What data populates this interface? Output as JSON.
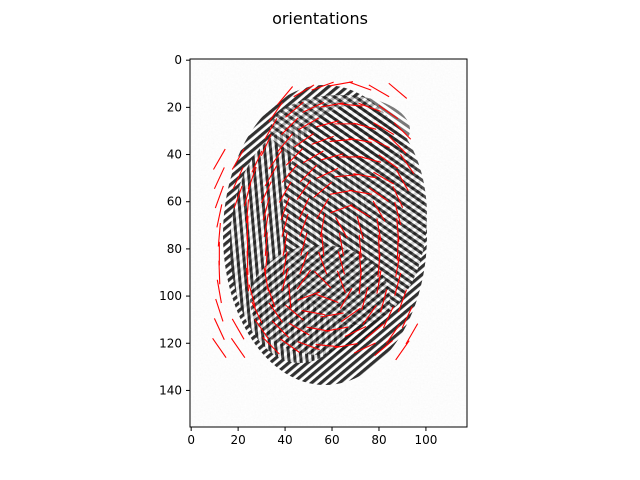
{
  "chart_data": {
    "type": "image",
    "title": "orientations",
    "xlabel": "",
    "ylabel": "",
    "xlim": [
      -0.5,
      117.5
    ],
    "ylim": [
      155.5,
      -0.5
    ],
    "x_ticks": [
      0,
      20,
      40,
      60,
      80,
      100
    ],
    "y_ticks": [
      0,
      20,
      40,
      60,
      80,
      100,
      120,
      140
    ],
    "image": "grayscale fingerprint",
    "image_colormap": "gray",
    "grid": false,
    "orientation_line_color": "#ff0000",
    "orientation_line_length": 10,
    "orientation_field": [
      {
        "x": 40,
        "y": 15,
        "angle": 50
      },
      {
        "x": 48,
        "y": 13,
        "angle": 30
      },
      {
        "x": 56,
        "y": 11,
        "angle": 20
      },
      {
        "x": 64,
        "y": 10,
        "angle": 10
      },
      {
        "x": 72,
        "y": 11,
        "angle": -20
      },
      {
        "x": 80,
        "y": 13,
        "angle": -30
      },
      {
        "x": 88,
        "y": 13,
        "angle": -40
      },
      {
        "x": 36,
        "y": 22,
        "angle": 55
      },
      {
        "x": 44,
        "y": 21,
        "angle": 40
      },
      {
        "x": 52,
        "y": 20,
        "angle": 25
      },
      {
        "x": 60,
        "y": 19,
        "angle": 10
      },
      {
        "x": 68,
        "y": 19,
        "angle": -5
      },
      {
        "x": 76,
        "y": 20,
        "angle": -20
      },
      {
        "x": 84,
        "y": 22,
        "angle": -35
      },
      {
        "x": 34,
        "y": 29,
        "angle": 60
      },
      {
        "x": 42,
        "y": 28,
        "angle": 45
      },
      {
        "x": 50,
        "y": 27,
        "angle": 30
      },
      {
        "x": 58,
        "y": 27,
        "angle": 15
      },
      {
        "x": 66,
        "y": 27,
        "angle": 0
      },
      {
        "x": 74,
        "y": 28,
        "angle": -15
      },
      {
        "x": 82,
        "y": 29,
        "angle": -30
      },
      {
        "x": 90,
        "y": 30,
        "angle": -45
      },
      {
        "x": 32,
        "y": 36,
        "angle": 65
      },
      {
        "x": 40,
        "y": 35,
        "angle": 50
      },
      {
        "x": 48,
        "y": 34,
        "angle": 35
      },
      {
        "x": 56,
        "y": 34,
        "angle": 20
      },
      {
        "x": 64,
        "y": 34,
        "angle": 5
      },
      {
        "x": 72,
        "y": 34,
        "angle": -10
      },
      {
        "x": 80,
        "y": 35,
        "angle": -25
      },
      {
        "x": 88,
        "y": 36,
        "angle": -45
      },
      {
        "x": 28,
        "y": 43,
        "angle": 65
      },
      {
        "x": 36,
        "y": 42,
        "angle": 55
      },
      {
        "x": 44,
        "y": 41,
        "angle": 45
      },
      {
        "x": 52,
        "y": 41,
        "angle": 30
      },
      {
        "x": 60,
        "y": 41,
        "angle": 15
      },
      {
        "x": 68,
        "y": 41,
        "angle": 0
      },
      {
        "x": 76,
        "y": 42,
        "angle": -15
      },
      {
        "x": 84,
        "y": 43,
        "angle": -35
      },
      {
        "x": 92,
        "y": 44,
        "angle": -55
      },
      {
        "x": 26,
        "y": 50,
        "angle": 70
      },
      {
        "x": 34,
        "y": 49,
        "angle": 60
      },
      {
        "x": 42,
        "y": 48,
        "angle": 50
      },
      {
        "x": 50,
        "y": 48,
        "angle": 45
      },
      {
        "x": 58,
        "y": 48,
        "angle": 25
      },
      {
        "x": 66,
        "y": 49,
        "angle": 5
      },
      {
        "x": 74,
        "y": 49,
        "angle": -10
      },
      {
        "x": 82,
        "y": 50,
        "angle": -30
      },
      {
        "x": 90,
        "y": 51,
        "angle": -60
      },
      {
        "x": 24,
        "y": 57,
        "angle": 75
      },
      {
        "x": 32,
        "y": 56,
        "angle": 65
      },
      {
        "x": 40,
        "y": 56,
        "angle": 60
      },
      {
        "x": 48,
        "y": 55,
        "angle": 55
      },
      {
        "x": 56,
        "y": 55,
        "angle": 40
      },
      {
        "x": 64,
        "y": 56,
        "angle": 10
      },
      {
        "x": 72,
        "y": 56,
        "angle": -10
      },
      {
        "x": 80,
        "y": 57,
        "angle": -35
      },
      {
        "x": 88,
        "y": 58,
        "angle": -65
      },
      {
        "x": 24,
        "y": 64,
        "angle": 85
      },
      {
        "x": 32,
        "y": 63,
        "angle": 75
      },
      {
        "x": 40,
        "y": 63,
        "angle": 70
      },
      {
        "x": 48,
        "y": 63,
        "angle": 65
      },
      {
        "x": 56,
        "y": 63,
        "angle": 60
      },
      {
        "x": 64,
        "y": 63,
        "angle": 20
      },
      {
        "x": 72,
        "y": 64,
        "angle": -30
      },
      {
        "x": 80,
        "y": 64,
        "angle": -60
      },
      {
        "x": 88,
        "y": 65,
        "angle": -75
      },
      {
        "x": 24,
        "y": 71,
        "angle": 88
      },
      {
        "x": 32,
        "y": 70,
        "angle": 80
      },
      {
        "x": 40,
        "y": 70,
        "angle": 75
      },
      {
        "x": 48,
        "y": 70,
        "angle": 70
      },
      {
        "x": 56,
        "y": 70,
        "angle": 80
      },
      {
        "x": 64,
        "y": 71,
        "angle": -60
      },
      {
        "x": 72,
        "y": 71,
        "angle": -75
      },
      {
        "x": 80,
        "y": 72,
        "angle": -80
      },
      {
        "x": 88,
        "y": 72,
        "angle": -85
      },
      {
        "x": 24,
        "y": 78,
        "angle": 90
      },
      {
        "x": 32,
        "y": 78,
        "angle": 85
      },
      {
        "x": 40,
        "y": 78,
        "angle": 80
      },
      {
        "x": 48,
        "y": 78,
        "angle": 75
      },
      {
        "x": 56,
        "y": 78,
        "angle": -85
      },
      {
        "x": 64,
        "y": 78,
        "angle": -80
      },
      {
        "x": 72,
        "y": 79,
        "angle": -85
      },
      {
        "x": 80,
        "y": 79,
        "angle": -88
      },
      {
        "x": 88,
        "y": 80,
        "angle": 88
      },
      {
        "x": 24,
        "y": 86,
        "angle": -88
      },
      {
        "x": 32,
        "y": 86,
        "angle": 85
      },
      {
        "x": 40,
        "y": 86,
        "angle": 80
      },
      {
        "x": 48,
        "y": 86,
        "angle": 70
      },
      {
        "x": 56,
        "y": 86,
        "angle": -70
      },
      {
        "x": 64,
        "y": 86,
        "angle": -75
      },
      {
        "x": 72,
        "y": 86,
        "angle": -85
      },
      {
        "x": 80,
        "y": 87,
        "angle": 85
      },
      {
        "x": 88,
        "y": 87,
        "angle": 80
      },
      {
        "x": 24,
        "y": 93,
        "angle": -85
      },
      {
        "x": 32,
        "y": 93,
        "angle": -80
      },
      {
        "x": 40,
        "y": 93,
        "angle": 75
      },
      {
        "x": 48,
        "y": 93,
        "angle": 55
      },
      {
        "x": 56,
        "y": 93,
        "angle": -45
      },
      {
        "x": 64,
        "y": 94,
        "angle": -70
      },
      {
        "x": 72,
        "y": 94,
        "angle": 85
      },
      {
        "x": 80,
        "y": 94,
        "angle": 80
      },
      {
        "x": 88,
        "y": 95,
        "angle": 75
      },
      {
        "x": 26,
        "y": 100,
        "angle": -75
      },
      {
        "x": 34,
        "y": 100,
        "angle": -70
      },
      {
        "x": 42,
        "y": 100,
        "angle": -85
      },
      {
        "x": 50,
        "y": 100,
        "angle": 20
      },
      {
        "x": 58,
        "y": 101,
        "angle": -20
      },
      {
        "x": 66,
        "y": 101,
        "angle": 60
      },
      {
        "x": 74,
        "y": 101,
        "angle": 75
      },
      {
        "x": 82,
        "y": 102,
        "angle": 75
      },
      {
        "x": 90,
        "y": 102,
        "angle": 70
      },
      {
        "x": 28,
        "y": 107,
        "angle": -65
      },
      {
        "x": 36,
        "y": 107,
        "angle": -55
      },
      {
        "x": 44,
        "y": 107,
        "angle": -40
      },
      {
        "x": 52,
        "y": 107,
        "angle": -10
      },
      {
        "x": 60,
        "y": 108,
        "angle": 10
      },
      {
        "x": 68,
        "y": 108,
        "angle": 35
      },
      {
        "x": 76,
        "y": 108,
        "angle": 55
      },
      {
        "x": 84,
        "y": 109,
        "angle": 65
      },
      {
        "x": 92,
        "y": 109,
        "angle": 65
      },
      {
        "x": 30,
        "y": 114,
        "angle": -55
      },
      {
        "x": 38,
        "y": 114,
        "angle": -45
      },
      {
        "x": 46,
        "y": 114,
        "angle": -30
      },
      {
        "x": 54,
        "y": 114,
        "angle": -10
      },
      {
        "x": 62,
        "y": 114,
        "angle": 10
      },
      {
        "x": 70,
        "y": 115,
        "angle": 25
      },
      {
        "x": 78,
        "y": 115,
        "angle": 40
      },
      {
        "x": 86,
        "y": 116,
        "angle": 55
      },
      {
        "x": 94,
        "y": 116,
        "angle": 60
      },
      {
        "x": 34,
        "y": 121,
        "angle": -45
      },
      {
        "x": 42,
        "y": 121,
        "angle": -35
      },
      {
        "x": 50,
        "y": 121,
        "angle": -20
      },
      {
        "x": 58,
        "y": 121,
        "angle": -5
      },
      {
        "x": 66,
        "y": 121,
        "angle": 10
      },
      {
        "x": 74,
        "y": 122,
        "angle": 25
      },
      {
        "x": 82,
        "y": 122,
        "angle": 40
      },
      {
        "x": 90,
        "y": 123,
        "angle": 55
      },
      {
        "x": 12,
        "y": 42,
        "angle": 60
      },
      {
        "x": 20,
        "y": 42,
        "angle": 60
      },
      {
        "x": 12,
        "y": 50,
        "angle": 65
      },
      {
        "x": 20,
        "y": 50,
        "angle": 65
      },
      {
        "x": 12,
        "y": 58,
        "angle": 70
      },
      {
        "x": 20,
        "y": 58,
        "angle": 70
      },
      {
        "x": 12,
        "y": 66,
        "angle": 78
      },
      {
        "x": 12,
        "y": 74,
        "angle": 85
      },
      {
        "x": 12,
        "y": 82,
        "angle": 90
      },
      {
        "x": 12,
        "y": 90,
        "angle": -88
      },
      {
        "x": 12,
        "y": 98,
        "angle": -80
      },
      {
        "x": 12,
        "y": 106,
        "angle": -72
      },
      {
        "x": 12,
        "y": 114,
        "angle": -65
      },
      {
        "x": 20,
        "y": 114,
        "angle": -60
      },
      {
        "x": 12,
        "y": 122,
        "angle": -55
      },
      {
        "x": 20,
        "y": 122,
        "angle": -55
      }
    ]
  }
}
